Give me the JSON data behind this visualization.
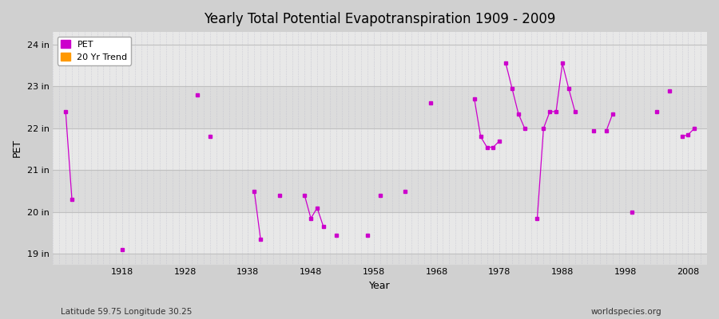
{
  "title": "Yearly Total Potential Evapotranspiration 1909 - 2009",
  "xlabel": "Year",
  "ylabel": "PET",
  "subtitle_left": "Latitude 59.75 Longitude 30.25",
  "subtitle_right": "worldspecies.org",
  "fig_bg_color": "#d0d0d0",
  "plot_bg_color": "#e8e8e8",
  "band_color_light": "#e8e8e8",
  "band_color_dark": "#dcdcdc",
  "pet_color": "#cc00cc",
  "trend_color": "#ff9900",
  "ylim": [
    18.75,
    24.3
  ],
  "xlim": [
    1907,
    2011
  ],
  "yticks": [
    19,
    20,
    21,
    22,
    23,
    24
  ],
  "ytick_labels": [
    "19 in",
    "20 in",
    "21 in",
    "22 in",
    "23 in",
    "24 in"
  ],
  "xticks": [
    1918,
    1928,
    1938,
    1948,
    1958,
    1968,
    1978,
    1988,
    1998,
    2008
  ],
  "years": [
    1909,
    1910,
    1918,
    1930,
    1932,
    1939,
    1940,
    1943,
    1947,
    1948,
    1949,
    1950,
    1952,
    1957,
    1959,
    1963,
    1967,
    1974,
    1975,
    1976,
    1977,
    1978,
    1979,
    1980,
    1981,
    1982,
    1984,
    1985,
    1986,
    1987,
    1988,
    1989,
    1990,
    1993,
    1995,
    1996,
    1999,
    2003,
    2005,
    2007,
    2008,
    2009
  ],
  "pet_values": [
    22.4,
    20.3,
    19.1,
    22.8,
    21.8,
    20.5,
    19.35,
    20.4,
    20.4,
    19.85,
    20.1,
    19.65,
    19.45,
    19.45,
    20.4,
    20.5,
    22.6,
    22.7,
    21.8,
    21.55,
    21.55,
    21.7,
    23.55,
    22.95,
    22.35,
    22.0,
    19.85,
    22.0,
    22.4,
    22.4,
    23.55,
    22.95,
    22.4,
    21.95,
    21.95,
    22.35,
    20.0,
    22.4,
    22.9,
    21.8,
    21.85,
    22.0
  ],
  "segments": [
    [
      1909,
      1910
    ],
    [
      1918
    ],
    [
      1930
    ],
    [
      1932
    ],
    [
      1939,
      1940
    ],
    [
      1943
    ],
    [
      1947,
      1948,
      1949,
      1950
    ],
    [
      1952
    ],
    [
      1957
    ],
    [
      1959
    ],
    [
      1963
    ],
    [
      1967
    ],
    [
      1974,
      1975,
      1976,
      1977,
      1978
    ],
    [
      1979,
      1980,
      1981,
      1982
    ],
    [
      1984,
      1985,
      1986,
      1987,
      1988,
      1989,
      1990
    ],
    [
      1993
    ],
    [
      1995,
      1996
    ],
    [
      1999
    ],
    [
      2003
    ],
    [
      2005
    ],
    [
      2007,
      2008,
      2009
    ]
  ]
}
